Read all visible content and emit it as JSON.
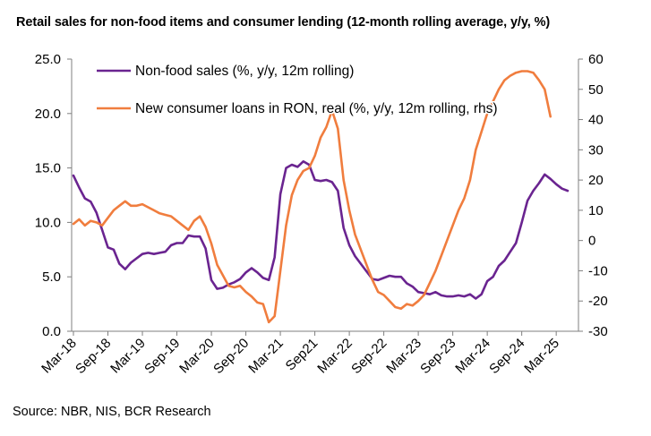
{
  "title": "Retail sales for non-food items and consumer lending (12-month rolling average, y/y, %)",
  "source": "Source: NBR, NIS, BCR Research",
  "chart_data": {
    "type": "line",
    "title": "Retail sales for non-food items and consumer lending (12-month rolling average, y/y, %)",
    "x_tick_labels": [
      "Mar-18",
      "Sep-18",
      "Mar-19",
      "Sep-19",
      "Mar-20",
      "Sep-20",
      "Mar-21",
      "Sep21",
      "Mar-22",
      "Sep-22",
      "Mar-23",
      "Sep-23",
      "Mar-24",
      "Sep-24",
      "Mar-25"
    ],
    "y_left": {
      "ylim": [
        0,
        25
      ],
      "ticks": [
        "0.0",
        "5.0",
        "10.0",
        "15.0",
        "20.0",
        "25.0"
      ]
    },
    "y_right": {
      "ylim": [
        -30,
        60
      ],
      "ticks": [
        "-30",
        "-20",
        "-10",
        "0",
        "10",
        "20",
        "30",
        "40",
        "50",
        "60"
      ]
    },
    "legend": {
      "position": "top-left",
      "inside": true
    },
    "series": [
      {
        "name": "Non-food sales (%, y/y, 12m rolling)",
        "axis": "left",
        "color": "#6a2490",
        "values": [
          14.3,
          13.2,
          12.2,
          11.9,
          10.9,
          9.3,
          7.7,
          7.5,
          6.2,
          5.7,
          6.3,
          6.7,
          7.1,
          7.2,
          7.1,
          7.2,
          7.3,
          7.9,
          8.1,
          8.1,
          8.8,
          8.7,
          8.7,
          7.6,
          4.7,
          3.9,
          4.0,
          4.3,
          4.5,
          4.8,
          5.4,
          5.8,
          5.4,
          4.9,
          4.7,
          6.8,
          12.6,
          15.0,
          15.3,
          15.1,
          15.6,
          15.3,
          13.9,
          13.8,
          13.9,
          13.7,
          12.9,
          9.5,
          7.9,
          6.9,
          6.2,
          5.5,
          4.8,
          4.7,
          4.9,
          5.1,
          5.0,
          5.0,
          4.4,
          4.1,
          3.6,
          3.5,
          3.4,
          3.6,
          3.3,
          3.2,
          3.2,
          3.3,
          3.2,
          3.4,
          3.0,
          3.4,
          4.6,
          5.0,
          6.0,
          6.5,
          7.3,
          8.1,
          10.0,
          12.0,
          12.9,
          13.6,
          14.4,
          14.0,
          13.5,
          13.1,
          12.9
        ]
      },
      {
        "name": "New consumer loans in RON, real (%, y/y, 12m rolling, rhs)",
        "axis": "right",
        "color": "#f07d3e",
        "values": [
          5.5,
          7.0,
          5.0,
          6.5,
          6.0,
          5.0,
          7.5,
          10.0,
          11.5,
          13.0,
          11.5,
          11.5,
          12.0,
          11.0,
          10.0,
          9.0,
          8.5,
          8.0,
          6.5,
          5.0,
          3.5,
          6.5,
          8.0,
          4.5,
          -1.0,
          -8.0,
          -11.5,
          -15.0,
          -15.5,
          -15.0,
          -17.0,
          -18.5,
          -20.5,
          -21.0,
          -27.0,
          -25.0,
          -10.0,
          5.0,
          15.0,
          20.0,
          23.0,
          24.0,
          28.0,
          34.0,
          37.5,
          43.0,
          37.0,
          20.0,
          10.0,
          2.0,
          -3.0,
          -8.0,
          -13.0,
          -17.0,
          -18.0,
          -20.0,
          -22.0,
          -22.5,
          -21.0,
          -21.5,
          -20.0,
          -18.0,
          -14.0,
          -10.0,
          -5.0,
          0.0,
          5.0,
          10.0,
          14.0,
          20.0,
          30.0,
          36.0,
          42.0,
          46.0,
          50.0,
          53.0,
          54.5,
          55.5,
          56.0,
          56.0,
          55.5,
          53.0,
          50.0,
          41.0
        ]
      }
    ]
  }
}
